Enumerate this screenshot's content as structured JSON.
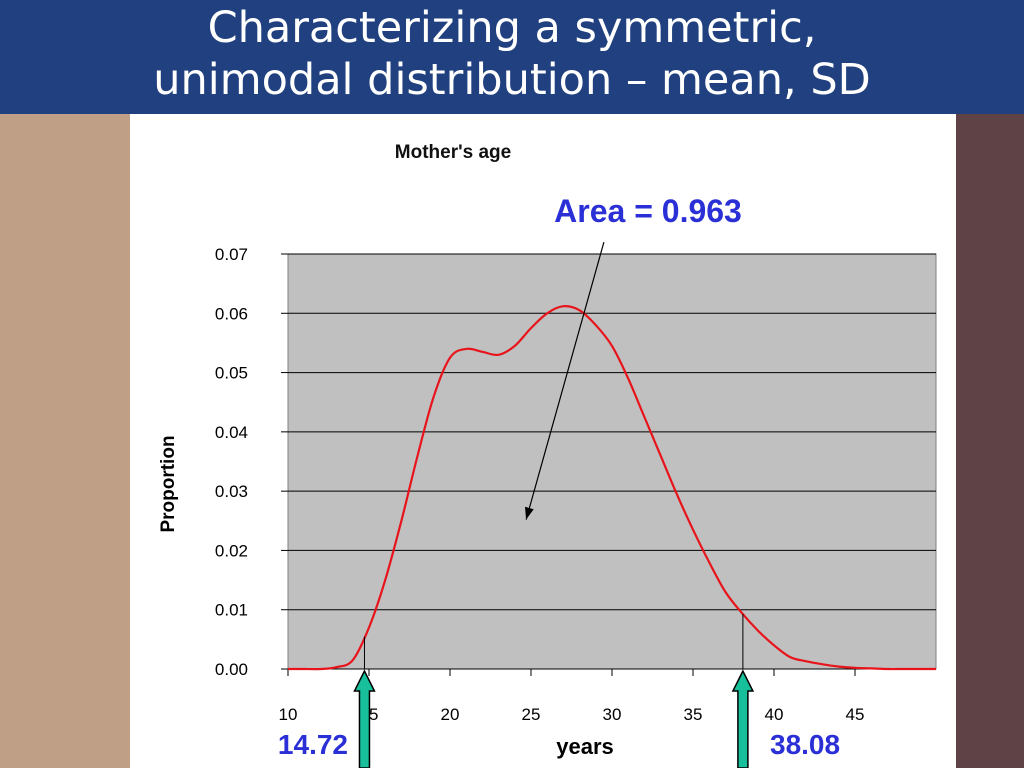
{
  "slide": {
    "title": "Characterizing a symmetric,\nunimodal distribution – mean, SD",
    "colors": {
      "header": "#21407f",
      "left_band": "#bf9f85",
      "right_band": "#5e4245"
    }
  },
  "chart_data": {
    "type": "line",
    "title": "Mother's age",
    "xlabel": "years",
    "ylabel": "Proportion",
    "xlim": [
      10,
      50
    ],
    "ylim": [
      0,
      0.07
    ],
    "x_ticks": [
      10,
      15,
      20,
      25,
      30,
      35,
      40,
      45
    ],
    "y_ticks": [
      "0.00",
      "0.01",
      "0.02",
      "0.03",
      "0.04",
      "0.05",
      "0.06",
      "0.07"
    ],
    "grid": true,
    "plot_background": "#c0c0c0",
    "series": [
      {
        "color": "#e8141b",
        "x": [
          10,
          11,
          12,
          13,
          14,
          15,
          16,
          17,
          18,
          19,
          20,
          21,
          22,
          23,
          24,
          25,
          26,
          27,
          28,
          29,
          30,
          31,
          32,
          33,
          34,
          35,
          36,
          37,
          38,
          39,
          40,
          41,
          42,
          43,
          44,
          45,
          46,
          47,
          48,
          49,
          50
        ],
        "y": [
          0.0,
          0.0,
          0.0,
          0.0003,
          0.0015,
          0.007,
          0.015,
          0.025,
          0.036,
          0.046,
          0.0525,
          0.054,
          0.0535,
          0.053,
          0.0545,
          0.0575,
          0.06,
          0.0612,
          0.0605,
          0.058,
          0.0545,
          0.049,
          0.0425,
          0.036,
          0.0295,
          0.0235,
          0.018,
          0.013,
          0.0095,
          0.0065,
          0.004,
          0.002,
          0.0013,
          0.0008,
          0.0004,
          0.0002,
          0.0001,
          0.0,
          0.0,
          0.0,
          0.0
        ]
      }
    ],
    "annotations": {
      "area_label": "Area = 0.963",
      "area_pointer": {
        "from": [
          29.5,
          0.072
        ],
        "to": [
          24.7,
          0.0252
        ]
      },
      "lower_bound": {
        "label": "14.72",
        "x": 14.72
      },
      "upper_bound": {
        "label": "38.08",
        "x": 38.08
      },
      "label_color": "#2b2fd6",
      "marker_color": "#17bf9a"
    }
  }
}
